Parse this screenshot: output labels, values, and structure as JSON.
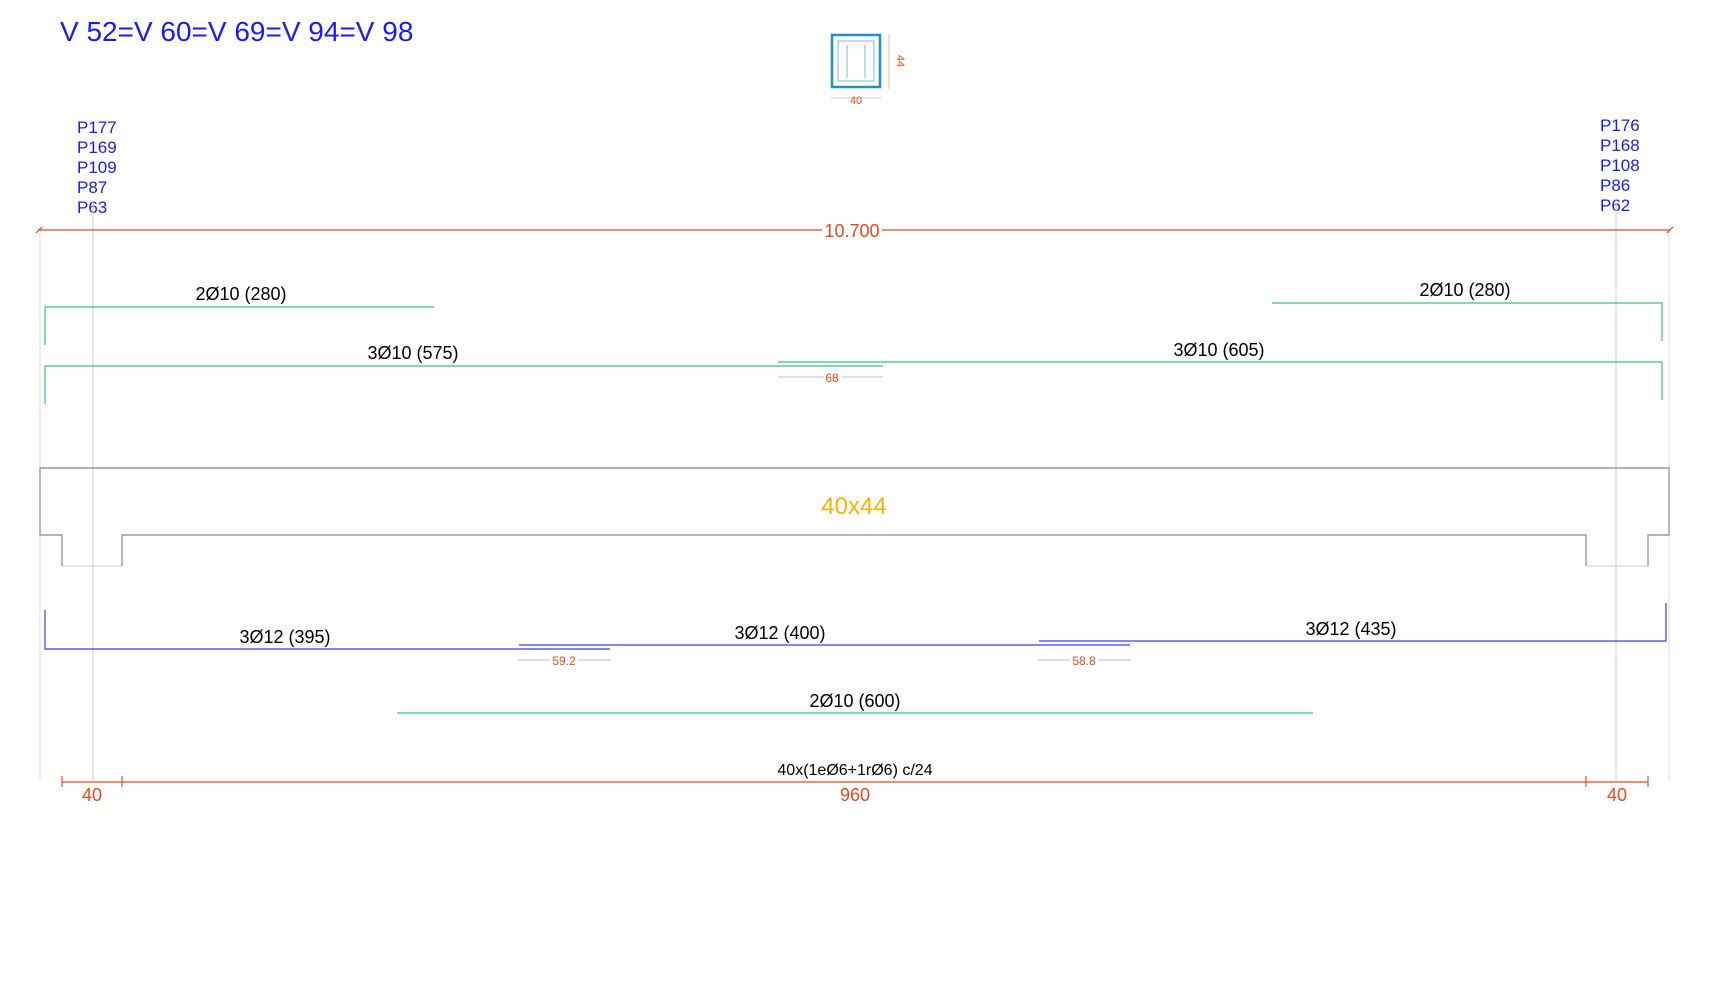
{
  "title": "V 52=V 60=V 69=V 94=V 98",
  "section_icon": {
    "name": "beam-cross-section-icon",
    "width_label": "40",
    "height_label": "44"
  },
  "pillars_left": [
    "P177",
    "P169",
    "P109",
    "P87",
    "P63"
  ],
  "pillars_right": [
    "P176",
    "P168",
    "P108",
    "P86",
    "P62"
  ],
  "total_length": "10.700",
  "top_bars": {
    "left_short": "2Ø10 (280)",
    "right_short": "2Ø10 (280)",
    "left_long": "3Ø10 (575)",
    "right_long": "3Ø10 (605)",
    "overlap": "68"
  },
  "section_label": "40x44",
  "bottom_bars": {
    "left": "3Ø12 (395)",
    "middle": "3Ø12 (400)",
    "right": "3Ø12 (435)",
    "overlap_left": "59.2",
    "overlap_right": "58.8",
    "extra": "2Ø10 (600)"
  },
  "stirrups": "40x(1eØ6+1rØ6) c/24",
  "bottom_dims": {
    "left": "40",
    "middle": "960",
    "right": "40"
  },
  "colors": {
    "title": "#1a1aff",
    "dimension": "#e8481a",
    "top_rebar": "#2ecc71",
    "bottom_rebar": "#3b3bff",
    "concrete_outline": "#888888",
    "section_label": "#f5b400",
    "section_icon": "#1e90c8"
  }
}
